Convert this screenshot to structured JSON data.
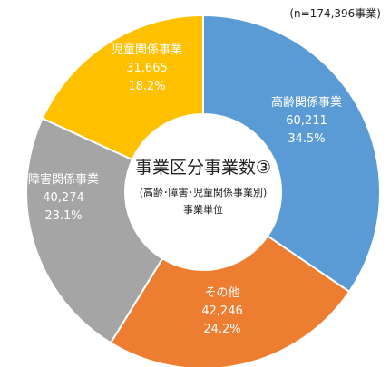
{
  "chart_data": {
    "type": "pie",
    "note": "(n=174,396事業)",
    "title": "事業区分事業数③",
    "subtitle": "(高齢･障害･児童関係事業別)",
    "unit_label": "事業単位",
    "slices": [
      {
        "label": "高齢関係事業",
        "value": 60211,
        "value_text": "60,211",
        "percent_text": "34.5%",
        "color": "#5b9bd5"
      },
      {
        "label": "その他",
        "value": 42246,
        "value_text": "42,246",
        "percent_text": "24.2%",
        "color": "#ed7d31"
      },
      {
        "label": "障害関係事業",
        "value": 40274,
        "value_text": "40,274",
        "percent_text": "23.1%",
        "color": "#a5a5a5"
      },
      {
        "label": "児童関係事業",
        "value": 31665,
        "value_text": "31,665",
        "percent_text": "18.2%",
        "color": "#ffc000"
      }
    ]
  }
}
